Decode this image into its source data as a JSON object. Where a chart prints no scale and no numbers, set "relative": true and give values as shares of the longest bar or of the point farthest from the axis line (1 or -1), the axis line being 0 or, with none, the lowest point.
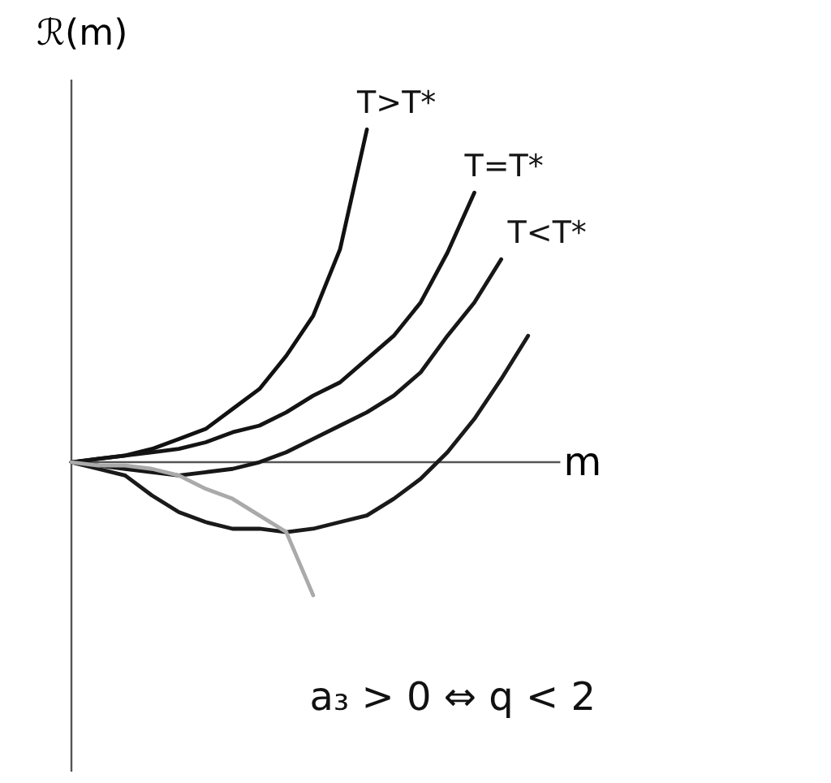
{
  "chart_data": {
    "type": "line",
    "relative": true,
    "xlabel": "m",
    "ylabel": "ℛ(m)",
    "categories": [
      null,
      null,
      null,
      null,
      null,
      null,
      null,
      null,
      null,
      null,
      null,
      null,
      null,
      null,
      null,
      null,
      null,
      null
    ],
    "series": [
      {
        "name": "T>T*",
        "color": "#111111",
        "values": [
          0,
          0.01,
          0.02,
          0.04,
          0.07,
          0.1,
          0.16,
          0.22,
          0.32,
          0.44,
          0.64,
          1,
          null,
          null,
          null,
          null,
          null,
          null
        ]
      },
      {
        "name": "T=T*",
        "color": "#141414",
        "values": [
          0,
          0.01,
          0.02,
          0.03,
          0.04,
          0.06,
          0.09,
          0.11,
          0.15,
          0.2,
          0.24,
          0.31,
          0.38,
          0.48,
          0.63,
          0.81,
          null,
          null
        ]
      },
      {
        "name": "T<T*",
        "color": "#171717",
        "values": [
          0,
          -0.01,
          -0.02,
          -0.03,
          -0.04,
          -0.03,
          -0.02,
          0,
          0.03,
          0.07,
          0.11,
          0.15,
          0.2,
          0.27,
          0.38,
          0.48,
          0.61,
          null
        ]
      },
      {
        "color": "#1a1a1a",
        "values": [
          0,
          -0.02,
          -0.04,
          -0.1,
          -0.15,
          -0.18,
          -0.2,
          -0.2,
          -0.21,
          -0.2,
          -0.18,
          -0.16,
          -0.11,
          -0.05,
          0.03,
          0.13,
          0.25,
          0.38
        ]
      },
      {
        "color": "#aaaaaa",
        "values": [
          0,
          -0.01,
          -0.01,
          -0.02,
          -0.04,
          -0.08,
          -0.11,
          -0.16,
          -0.21,
          -0.4,
          null,
          null,
          null,
          null,
          null,
          null,
          null,
          null
        ]
      }
    ],
    "annotations": [
      "a₃ > 0 ⇔ q < 2"
    ]
  }
}
